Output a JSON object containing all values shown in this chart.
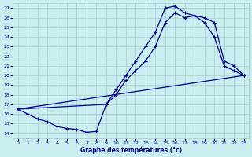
{
  "xlabel": "Graphe des températures (°c)",
  "xlim": [
    -0.5,
    23.5
  ],
  "ylim": [
    13.5,
    27.5
  ],
  "yticks": [
    14,
    15,
    16,
    17,
    18,
    19,
    20,
    21,
    22,
    23,
    24,
    25,
    26,
    27
  ],
  "xticks": [
    0,
    1,
    2,
    3,
    4,
    5,
    6,
    7,
    8,
    9,
    10,
    11,
    12,
    13,
    14,
    15,
    16,
    17,
    18,
    19,
    20,
    21,
    22,
    23
  ],
  "bg_color": "#c8eef0",
  "line_color": "#00008b",
  "grid_color": "#aacccc",
  "curve1_x": [
    0,
    1,
    2,
    3,
    4,
    5,
    6,
    7,
    8,
    9,
    10,
    11,
    12,
    13,
    14,
    15,
    16,
    17,
    18,
    19,
    20,
    21,
    22,
    23
  ],
  "curve1_y": [
    16.5,
    16.0,
    15.5,
    15.2,
    14.7,
    14.5,
    14.4,
    14.1,
    14.2,
    17.0,
    18.5,
    20.0,
    21.5,
    23.0,
    24.5,
    27.0,
    27.2,
    26.5,
    26.2,
    25.5,
    24.0,
    21.0,
    20.5,
    20.0
  ],
  "curve2_x": [
    0,
    9,
    10,
    11,
    12,
    13,
    14,
    15,
    16,
    17,
    18,
    19,
    20,
    21,
    22,
    23
  ],
  "curve2_y": [
    16.5,
    17.0,
    18.0,
    19.5,
    20.5,
    21.5,
    23.0,
    25.5,
    26.5,
    26.0,
    26.2,
    26.0,
    25.5,
    21.5,
    21.0,
    20.0
  ],
  "line3_x": [
    0,
    23
  ],
  "line3_y": [
    16.5,
    20.0
  ]
}
